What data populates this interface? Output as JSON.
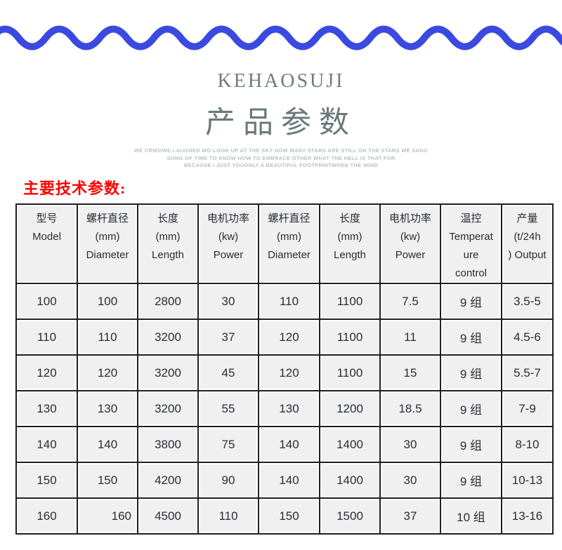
{
  "brand": "KEHAOSUJI",
  "title": "产品参数",
  "tagline_lines": [
    "WE CRIEDWE LAUGHED WO LOOK UP AT THE SKY HOW MANY STARS ARE STILL ON THE STARS WE SANG",
    "SONG OF TIME TO KNOW HOW TO EMBRACE OTHER WHAT THE HELL IS THAT FOR",
    "BECAUSE I JUST YOUONLY A BEAUTIFUL FOOTPRINTWHEN THE WIND"
  ],
  "section_heading": "主要技术参数:",
  "colors": {
    "wave": "#3a49e0",
    "title_text": "#6b7a78",
    "tagline_text": "#b7c1c7",
    "heading_red": "#fe0000",
    "cell_background": "#f0f0f0",
    "table_border": "#1f1f1f"
  },
  "table": {
    "headers": [
      {
        "lines": [
          "型号",
          "Model"
        ]
      },
      {
        "lines": [
          "螺杆直径",
          "(mm)",
          "Diameter"
        ]
      },
      {
        "lines": [
          "长度",
          "(mm)",
          "Length"
        ]
      },
      {
        "lines": [
          "电机功率",
          "(kw)",
          "Power"
        ]
      },
      {
        "lines": [
          "螺杆直径",
          "(mm)",
          "Diameter"
        ]
      },
      {
        "lines": [
          "长度",
          "(mm)",
          "Length"
        ]
      },
      {
        "lines": [
          "电机功率",
          "(kw)",
          "Power"
        ]
      },
      {
        "lines": [
          "温控",
          "Temperat",
          "ure",
          "control"
        ]
      },
      {
        "lines": [
          "产量",
          "(t/24h",
          ") Output"
        ]
      }
    ],
    "rows": [
      [
        "100",
        "100",
        "2800",
        "30",
        "110",
        "1100",
        "7.5",
        "9 组",
        "3.5-5"
      ],
      [
        "110",
        "110",
        "3200",
        "37",
        "120",
        "1100",
        "11",
        "9 组",
        "4.5-6"
      ],
      [
        "120",
        "120",
        "3200",
        "45",
        "120",
        "1100",
        "15",
        "9 组",
        "5.5-7"
      ],
      [
        "130",
        "130",
        "3200",
        "55",
        "130",
        "1200",
        "18.5",
        "9 组",
        "7-9"
      ],
      [
        "140",
        "140",
        "3800",
        "75",
        "140",
        "1400",
        "30",
        "9 组",
        "8-10"
      ],
      [
        "150",
        "150",
        "4200",
        "90",
        "140",
        "1400",
        "30",
        "9 组",
        "10-13"
      ],
      [
        "160",
        "160",
        "4500",
        "110",
        "150",
        "1500",
        "37",
        "10 组",
        "13-16"
      ]
    ]
  }
}
